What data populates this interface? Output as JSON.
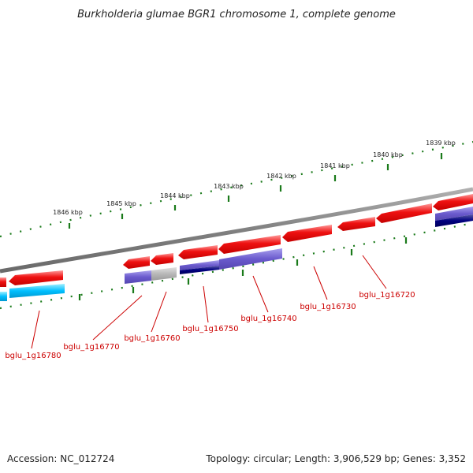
{
  "title": "Burkholderia glumae BGR1 chromosome 1, complete genome",
  "footer": {
    "accession": "Accession: NC_012724",
    "summary": "Topology: circular; Length: 3,906,529 bp; Genes: 3,352"
  },
  "colors": {
    "forward_gene": "#ee1111",
    "reverse_gene": "#6a5acd",
    "reverse_gene_dark": "#000080",
    "reverse_gene_cyan": "#00bfff",
    "grey_gene": "#b8b8b8",
    "backbone": "#808080",
    "ticks": "#1a7a1a",
    "gene_label": "#cc0000"
  },
  "ruler_labels": [
    "1846 kbp",
    "1845 kbp",
    "1844 kbp",
    "1843 kbp",
    "1842 kbp",
    "1841 kbp",
    "1840 kbp",
    "1839 kbp"
  ],
  "gene_labels": [
    "bglu_1g16780",
    "bglu_1g16770",
    "bglu_1g16760",
    "bglu_1g16750",
    "bglu_1g16740",
    "bglu_1g16730",
    "bglu_1g16720"
  ]
}
